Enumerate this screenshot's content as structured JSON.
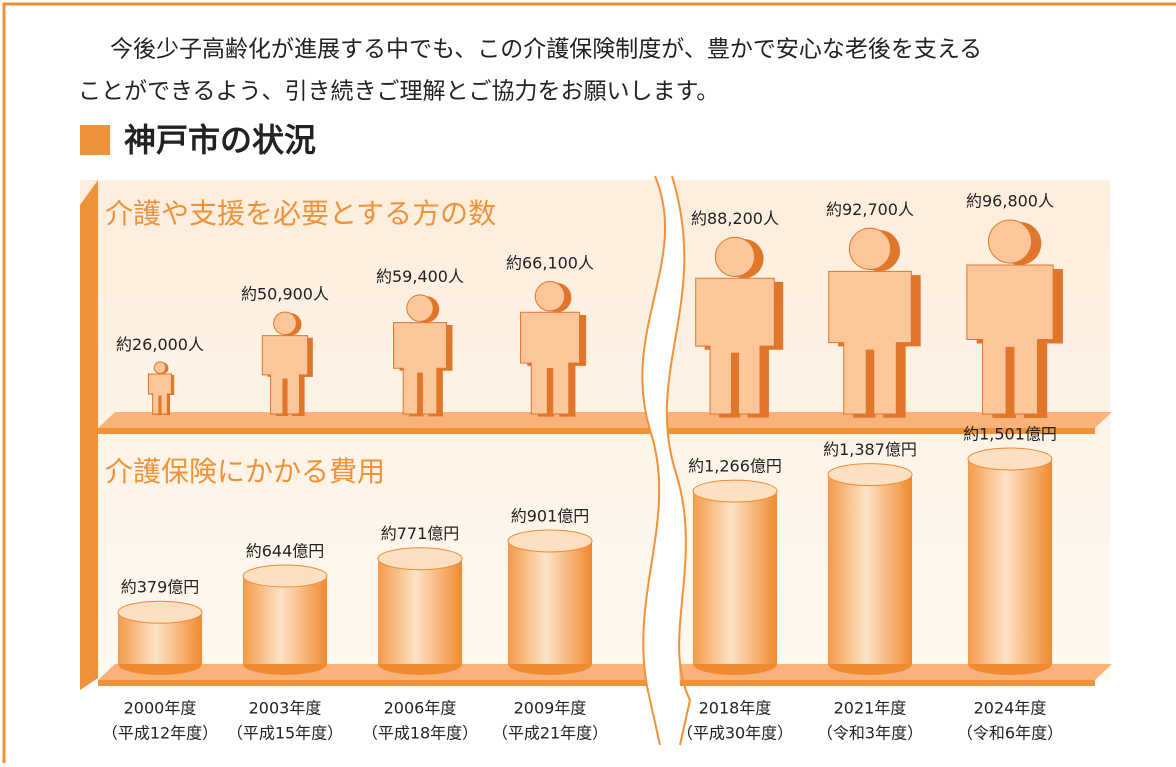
{
  "paragraph": [
    "今後少子高齢化が進展する中でも、この介護保険制度が、豊かで安心な老後を支える",
    "ことができるよう、引き続きご理解とご協力をお願いします。"
  ],
  "heading": "神戸市の状況",
  "chart_data": [
    {
      "type": "pictograph",
      "title": "介護や支援を必要とする方の数",
      "color": "#f39a4a",
      "values": [
        26000,
        50900,
        59400,
        66100,
        88200,
        92700,
        96800
      ],
      "value_labels": [
        "約26,000人",
        "約50,900人",
        "約59,400人",
        "約66,100人",
        "約88,200人",
        "約92,700人",
        "約96,800人"
      ]
    },
    {
      "type": "cylinder",
      "title": "介護保険にかかる費用",
      "color": "#f39a4a",
      "categories": [
        "2000年度",
        "2003年度",
        "2006年度",
        "2009年度",
        "2018年度",
        "2021年度",
        "2024年度"
      ],
      "category_notes": [
        "（平成12年度）",
        "（平成15年度）",
        "（平成18年度）",
        "（平成21年度）",
        "（平成30年度）",
        "（令和3年度）",
        "（令和6年度）"
      ],
      "values": [
        379,
        644,
        771,
        901,
        1266,
        1387,
        1501
      ],
      "value_labels": [
        "約379億円",
        "約644億円",
        "約771億円",
        "約901億円",
        "約1,266億円",
        "約1,387億円",
        "約1,501億円"
      ]
    }
  ]
}
